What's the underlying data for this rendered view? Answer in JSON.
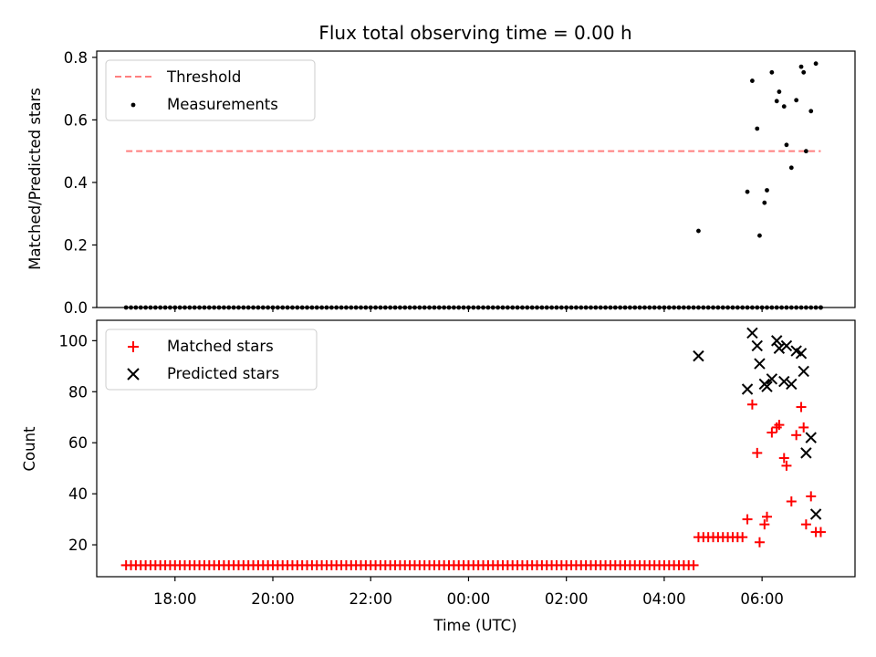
{
  "chart_data": [
    {
      "type": "scatter",
      "title": "Flux total observing time = 0.00 h",
      "xlabel": "",
      "ylabel": "Matched/Predicted stars",
      "ylim": [
        0,
        0.82
      ],
      "yticks": [
        "0.0",
        "0.2",
        "0.4",
        "0.6",
        "0.8"
      ],
      "xlim_hours": [
        16.4,
        31.9
      ],
      "legend_position": "top-left",
      "grid": false,
      "threshold": {
        "name": "Threshold",
        "value": 0.5,
        "x_range_hours": [
          17.0,
          31.2
        ],
        "color": "#ff7f7f"
      },
      "series": [
        {
          "name": "Measurements",
          "color": "#000000",
          "points_zero_hours": {
            "start": 17.0,
            "end": 31.2,
            "step": 0.1
          },
          "points": [
            [
              28.7,
              0.245
            ],
            [
              29.7,
              0.37
            ],
            [
              29.8,
              0.725
            ],
            [
              29.9,
              0.572
            ],
            [
              29.95,
              0.23
            ],
            [
              30.05,
              0.335
            ],
            [
              30.1,
              0.375
            ],
            [
              30.2,
              0.752
            ],
            [
              30.3,
              0.66
            ],
            [
              30.35,
              0.69
            ],
            [
              30.45,
              0.643
            ],
            [
              30.5,
              0.52
            ],
            [
              30.6,
              0.447
            ],
            [
              30.7,
              0.663
            ],
            [
              30.8,
              0.77
            ],
            [
              30.85,
              0.752
            ],
            [
              30.9,
              0.5
            ],
            [
              31.0,
              0.628
            ],
            [
              31.1,
              0.78
            ],
            [
              31.2,
              0.0
            ]
          ]
        }
      ]
    },
    {
      "type": "scatter",
      "title": "",
      "xlabel": "Time (UTC)",
      "ylabel": "Count",
      "ylim": [
        7.5,
        108
      ],
      "yticks": [
        "20",
        "40",
        "60",
        "80",
        "100"
      ],
      "xticks": [
        "18:00",
        "20:00",
        "22:00",
        "00:00",
        "02:00",
        "04:00",
        "06:00"
      ],
      "xlim_hours": [
        16.4,
        31.9
      ],
      "legend_position": "top-left",
      "grid": false,
      "series": [
        {
          "name": "Matched stars",
          "color": "#ff0000",
          "marker": "plus",
          "constant_runs": [
            {
              "start": 17.0,
              "end": 28.6,
              "step": 0.1,
              "value": 12
            },
            {
              "start": 28.7,
              "end": 29.6,
              "step": 0.1,
              "value": 23
            }
          ],
          "points": [
            [
              29.7,
              30
            ],
            [
              29.8,
              75
            ],
            [
              29.9,
              56
            ],
            [
              29.95,
              21
            ],
            [
              30.05,
              28
            ],
            [
              30.1,
              31
            ],
            [
              30.2,
              64
            ],
            [
              30.3,
              66
            ],
            [
              30.35,
              67
            ],
            [
              30.45,
              54
            ],
            [
              30.5,
              51
            ],
            [
              30.6,
              37
            ],
            [
              30.7,
              63
            ],
            [
              30.8,
              74
            ],
            [
              30.85,
              66
            ],
            [
              30.9,
              28
            ],
            [
              31.0,
              39
            ],
            [
              31.1,
              25
            ],
            [
              31.2,
              25
            ]
          ]
        },
        {
          "name": "Predicted stars",
          "color": "#000000",
          "marker": "x",
          "points": [
            [
              28.7,
              94
            ],
            [
              29.7,
              81
            ],
            [
              29.8,
              103
            ],
            [
              29.9,
              98
            ],
            [
              29.95,
              91
            ],
            [
              30.05,
              83
            ],
            [
              30.1,
              82
            ],
            [
              30.2,
              85
            ],
            [
              30.3,
              100
            ],
            [
              30.35,
              97
            ],
            [
              30.45,
              84
            ],
            [
              30.5,
              98
            ],
            [
              30.6,
              83
            ],
            [
              30.7,
              96
            ],
            [
              30.8,
              95
            ],
            [
              30.85,
              88
            ],
            [
              30.9,
              56
            ],
            [
              31.0,
              62
            ],
            [
              31.1,
              32
            ]
          ]
        }
      ]
    }
  ]
}
